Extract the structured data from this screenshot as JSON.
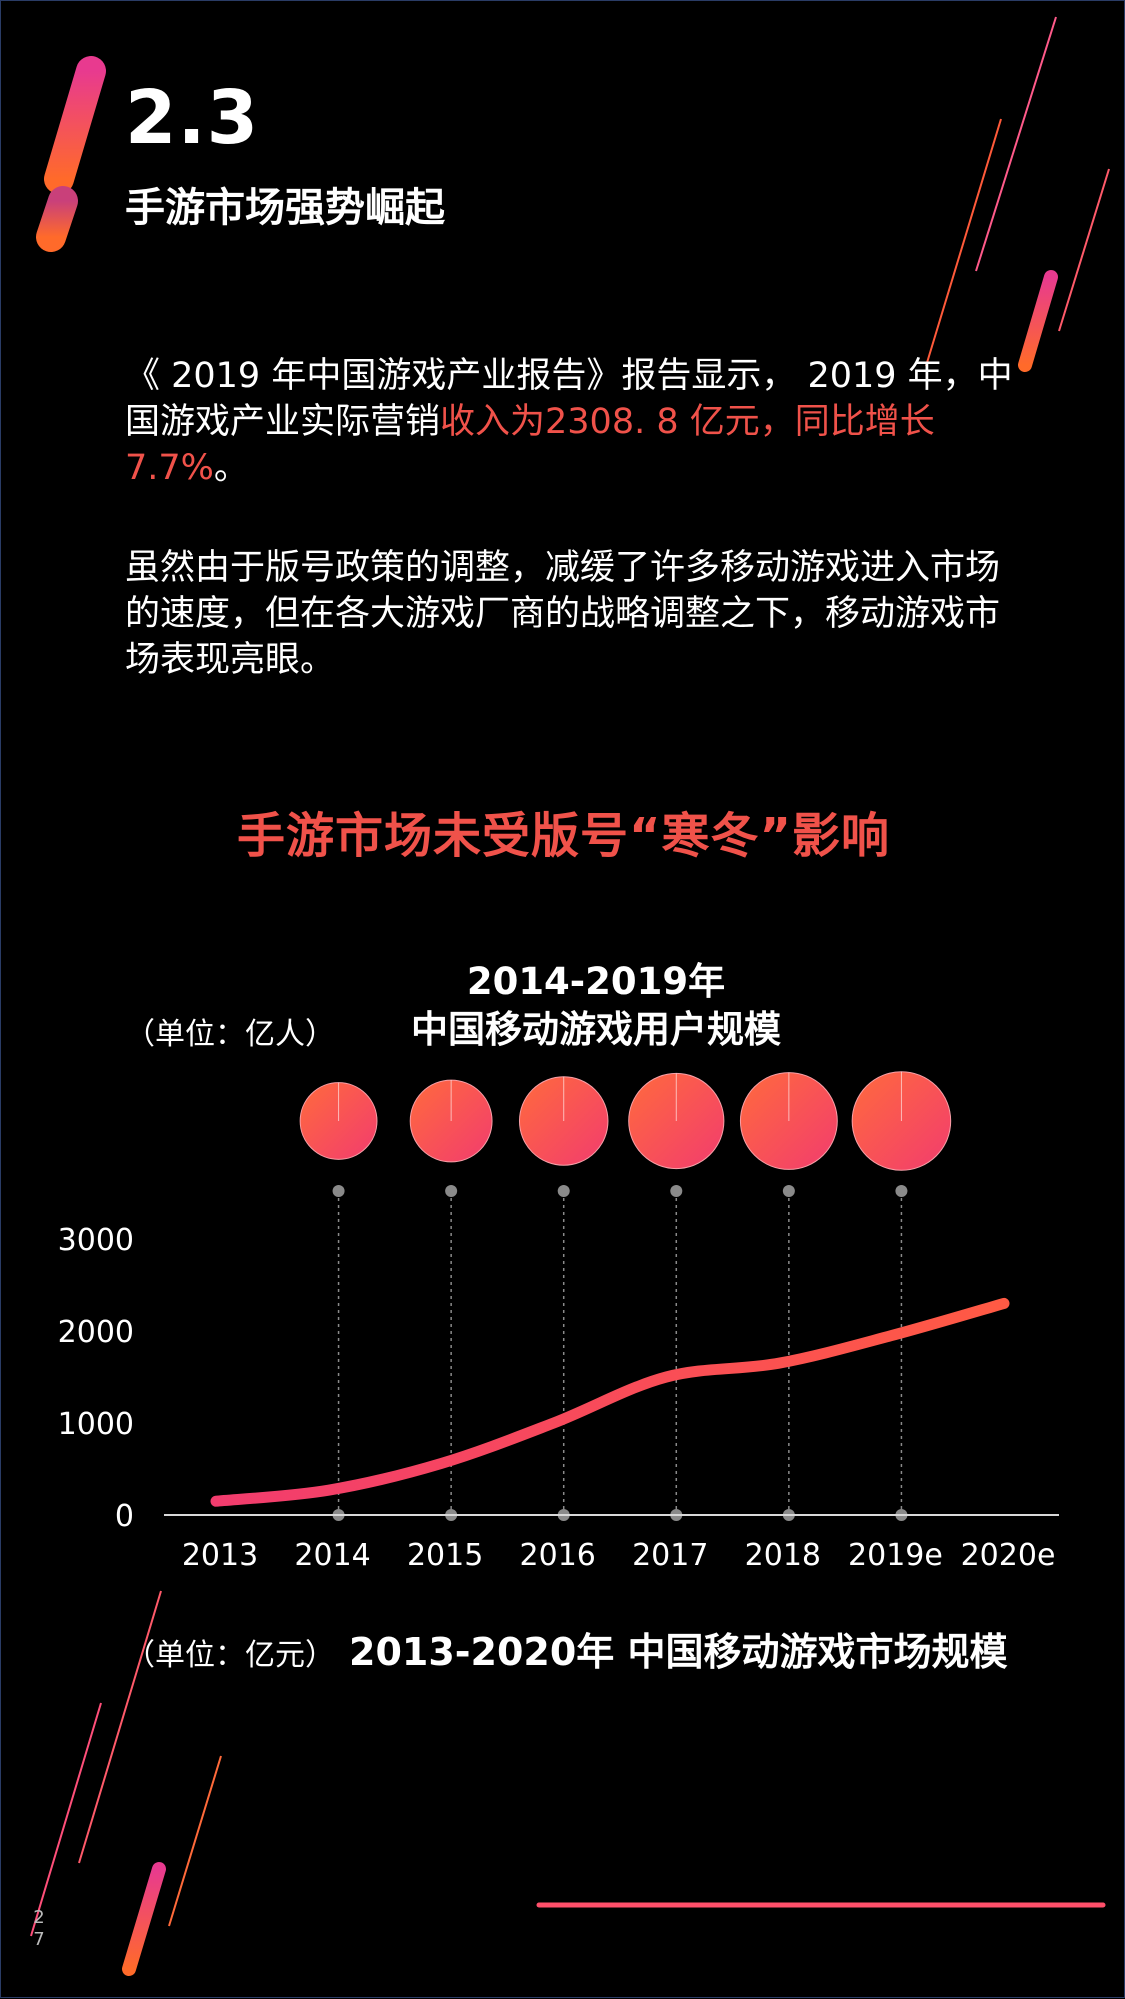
{
  "section": {
    "number": "2.3",
    "title": "手游市场强势崛起"
  },
  "paragraph1": {
    "normal": "《 2019 年中国游戏产业报告》报告显示， 2019 年，中国游戏产业实际营销",
    "highlight": "收入为2308. 8 亿元，同比增长7.7%",
    "tail": "。"
  },
  "paragraph2": "虽然由于版号政策的调整，减缓了许多移动游戏进入市场的速度，但在各大游戏厂商的战略调整之下，移动游戏市场表现亮眼。",
  "headline": "手游市场未受版号“寒冬”影响",
  "users_chart": {
    "title_line1": "2014-2019年",
    "title_line2": "中国移动游戏用户规模",
    "unit": "（单位：亿人）"
  },
  "market_chart": {
    "title": "2013-2020年 中国移动游戏市场规模",
    "unit": "（单位：亿元）"
  },
  "page_number": [
    "2",
    "7"
  ],
  "colors": {
    "accent": "#f0524a",
    "pink": "#f23c6e",
    "orange": "#ff6a3d",
    "background": "#000000"
  },
  "chart_data": {
    "type": "line",
    "categories": [
      "2013",
      "2014",
      "2015",
      "2016",
      "2017",
      "2018",
      "2019e",
      "2020e"
    ],
    "values": [
      150,
      270,
      560,
      1000,
      1500,
      1650,
      1950,
      2300
    ],
    "yticks": [
      0,
      1000,
      2000,
      3000
    ],
    "ylim": [
      0,
      3000
    ],
    "bubble_years": [
      "2014",
      "2015",
      "2016",
      "2017",
      "2018",
      "2019e"
    ],
    "bubble_sizes": [
      4.6,
      4.9,
      5.3,
      5.7,
      5.8,
      5.9
    ]
  }
}
